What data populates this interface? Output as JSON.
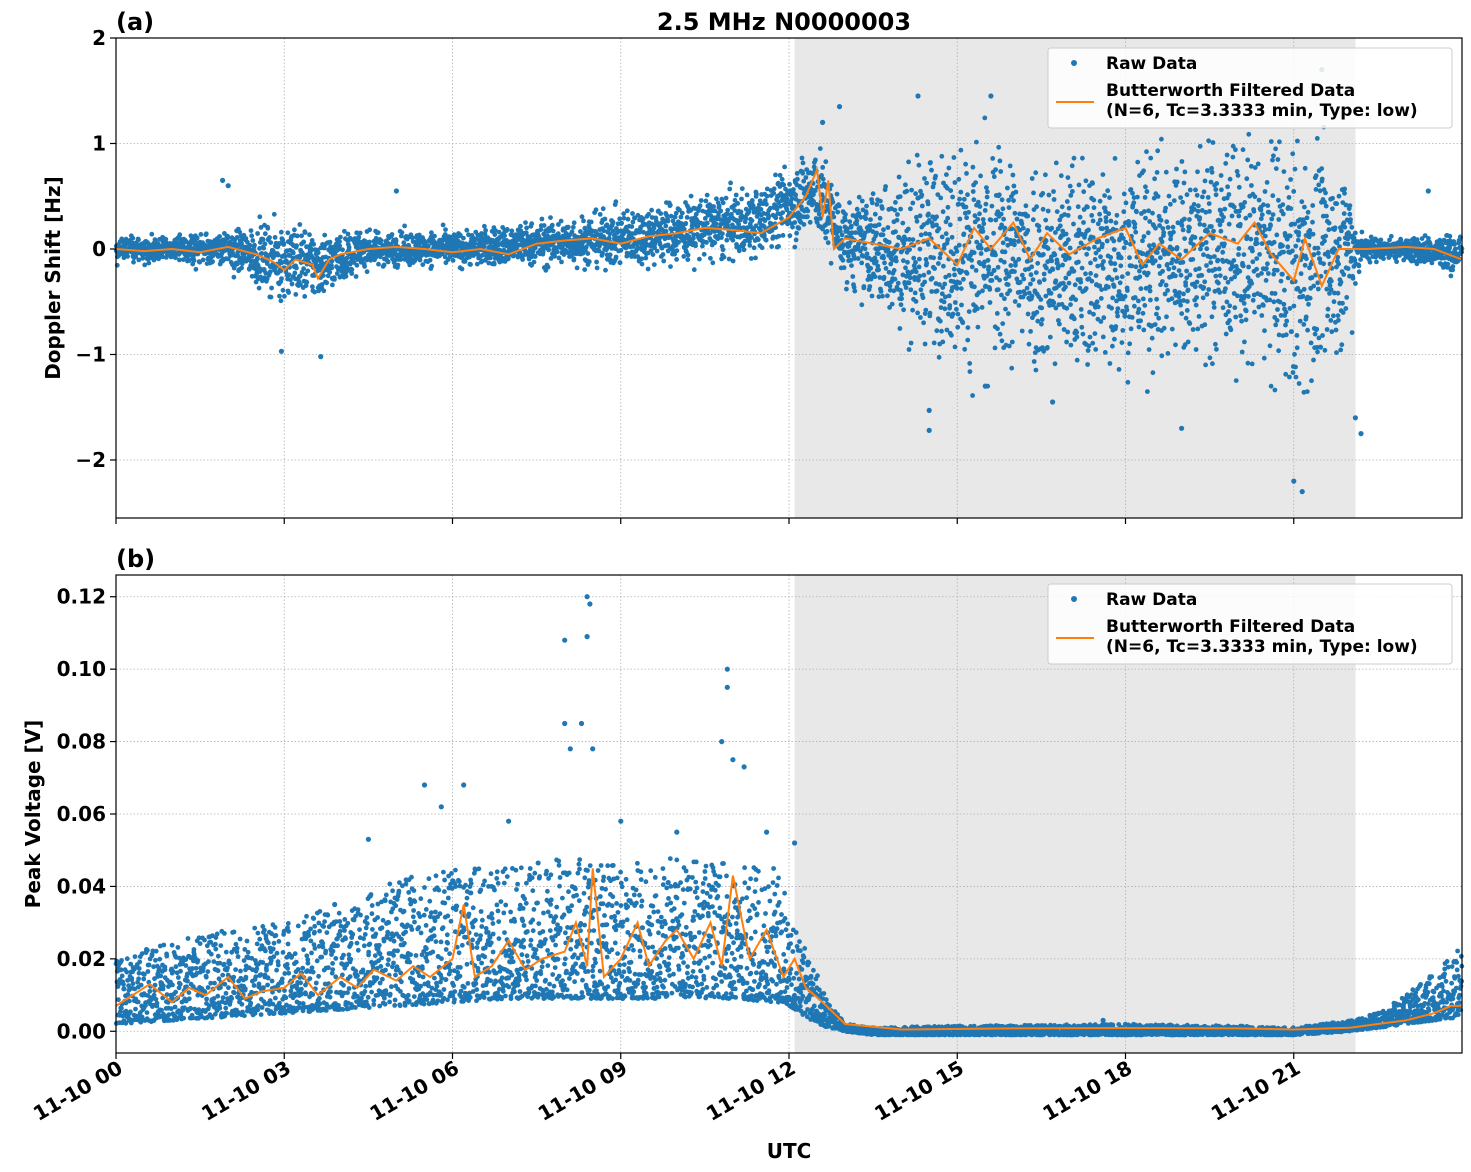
{
  "figure": {
    "title": "2.5 MHz N0000003",
    "xlabel": "UTC",
    "x_tick_labels": [
      "11-10 00",
      "11-10 03",
      "11-10 06",
      "11-10 09",
      "11-10 12",
      "11-10 15",
      "11-10 18",
      "11-10 21"
    ]
  },
  "colors": {
    "raw": "#1f77b4",
    "filtered": "#ff7f0e",
    "shade": "#e8e8e8",
    "grid": "#b0b0b0"
  },
  "chart_data": [
    {
      "panel": "(a)",
      "type": "scatter",
      "ylabel": "Doppler Shift [Hz]",
      "xlim_hours": [
        0,
        24
      ],
      "ylim": [
        -2.55,
        2.0
      ],
      "y_ticks": [
        2,
        1,
        0,
        -1,
        -2
      ],
      "y_tick_labels": [
        "2",
        "1",
        "0",
        "−1",
        "−2"
      ],
      "grid": true,
      "legend_placement": "top-right",
      "shaded_hours": [
        12.1,
        22.1
      ],
      "series": [
        {
          "name": "Raw Data",
          "style": "points",
          "envelope": {
            "hours": [
              0,
              1,
              2,
              2.8,
              3,
              3.6,
              4.5,
              6,
              7.5,
              9,
              10.5,
              11.5,
              12,
              12.5,
              13,
              14,
              15,
              16,
              17,
              18,
              19,
              20,
              21,
              21.5,
              22,
              22.2,
              23,
              24
            ],
            "center": [
              0,
              0,
              0,
              -0.1,
              -0.1,
              -0.15,
              0,
              0,
              0.05,
              0.1,
              0.2,
              0.25,
              0.45,
              0.55,
              0.05,
              0,
              0,
              -0.1,
              -0.15,
              -0.1,
              -0.05,
              0,
              -0.2,
              -0.15,
              0,
              0,
              0,
              -0.05
            ],
            "spread": [
              0.12,
              0.12,
              0.15,
              0.3,
              0.35,
              0.3,
              0.15,
              0.15,
              0.2,
              0.25,
              0.3,
              0.3,
              0.35,
              0.4,
              0.35,
              0.7,
              0.95,
              0.95,
              0.95,
              0.95,
              0.95,
              0.95,
              1.1,
              1.0,
              0.7,
              0.12,
              0.1,
              0.2
            ]
          },
          "outliers": [
            [
              1.9,
              0.65
            ],
            [
              2.0,
              0.6
            ],
            [
              2.95,
              -0.97
            ],
            [
              3.65,
              -1.02
            ],
            [
              5.0,
              0.55
            ],
            [
              11.8,
              0.5
            ],
            [
              12.6,
              1.2
            ],
            [
              12.9,
              1.35
            ],
            [
              14.3,
              1.45
            ],
            [
              14.5,
              -1.72
            ],
            [
              14.5,
              -1.53
            ],
            [
              15.6,
              1.45
            ],
            [
              15.5,
              -1.3
            ],
            [
              16.7,
              -1.45
            ],
            [
              19.0,
              -1.7
            ],
            [
              21.0,
              -2.2
            ],
            [
              21.15,
              -2.3
            ],
            [
              21.5,
              1.7
            ],
            [
              22.1,
              -1.6
            ],
            [
              22.2,
              -1.75
            ],
            [
              23.4,
              0.55
            ]
          ]
        },
        {
          "name": "Butterworth Filtered Data\n(N=6, Tc=3.3333 min, Type: low)",
          "style": "line",
          "hours": [
            0,
            0.5,
            1,
            1.5,
            2,
            2.5,
            2.8,
            3.0,
            3.2,
            3.5,
            3.6,
            3.8,
            4,
            4.5,
            5,
            5.5,
            6,
            6.5,
            7,
            7.5,
            8,
            8.5,
            9,
            9.5,
            10,
            10.5,
            11,
            11.5,
            12,
            12.3,
            12.5,
            12.6,
            12.7,
            12.8,
            13,
            13.5,
            14,
            14.5,
            15,
            15.3,
            15.6,
            16,
            16.3,
            16.6,
            17,
            17.5,
            18,
            18.3,
            18.6,
            19,
            19.5,
            20,
            20.3,
            20.6,
            21,
            21.2,
            21.5,
            21.8,
            22,
            22.3,
            23,
            23.5,
            24
          ],
          "values": [
            0,
            -0.02,
            0,
            -0.03,
            0.02,
            -0.05,
            -0.12,
            -0.2,
            -0.1,
            -0.15,
            -0.28,
            -0.1,
            -0.05,
            0,
            0.02,
            0,
            -0.03,
            0,
            -0.05,
            0.05,
            0.08,
            0.1,
            0.05,
            0.12,
            0.15,
            0.2,
            0.18,
            0.15,
            0.3,
            0.5,
            0.75,
            0.3,
            0.65,
            0.0,
            0.1,
            0.05,
            0.0,
            0.1,
            -0.15,
            0.2,
            0.0,
            0.25,
            -0.1,
            0.15,
            -0.05,
            0.1,
            0.2,
            -0.15,
            0.05,
            -0.1,
            0.15,
            0.05,
            0.25,
            -0.05,
            -0.3,
            0.1,
            -0.35,
            0.0,
            0.0,
            0.0,
            0.02,
            0.0,
            -0.1
          ]
        }
      ]
    },
    {
      "panel": "(b)",
      "type": "scatter",
      "ylabel": "Peak Voltage [V]",
      "xlim_hours": [
        0,
        24
      ],
      "ylim": [
        -0.006,
        0.126
      ],
      "y_ticks": [
        0.12,
        0.1,
        0.08,
        0.06,
        0.04,
        0.02,
        0.0
      ],
      "y_tick_labels": [
        "0.12",
        "0.10",
        "0.08",
        "0.06",
        "0.04",
        "0.02",
        "0.00"
      ],
      "grid": true,
      "legend_placement": "top-right",
      "shaded_hours": [
        12.1,
        22.1
      ],
      "series": [
        {
          "name": "Raw Data",
          "style": "points",
          "envelope": {
            "hours": [
              0,
              1,
              2,
              3,
              4,
              5,
              6,
              7,
              8,
              9,
              10,
              11,
              11.8,
              12.1,
              12.4,
              12.7,
              13,
              13.5,
              15,
              18,
              20,
              21,
              22,
              22.5,
              23,
              23.5,
              24
            ],
            "low": [
              0.002,
              0.003,
              0.004,
              0.005,
              0.006,
              0.007,
              0.008,
              0.009,
              0.009,
              0.009,
              0.009,
              0.009,
              0.008,
              0.006,
              0.003,
              0.001,
              0.0,
              -0.001,
              -0.001,
              -0.001,
              -0.001,
              -0.001,
              0.0,
              0.001,
              0.002,
              0.003,
              0.004
            ],
            "high": [
              0.02,
              0.025,
              0.028,
              0.03,
              0.035,
              0.042,
              0.045,
              0.045,
              0.048,
              0.046,
              0.048,
              0.046,
              0.045,
              0.03,
              0.02,
              0.008,
              0.002,
              0.001,
              0.0015,
              0.002,
              0.0015,
              0.001,
              0.003,
              0.005,
              0.01,
              0.016,
              0.024
            ]
          },
          "outliers": [
            [
              3.9,
              0.035
            ],
            [
              4.5,
              0.053
            ],
            [
              5.5,
              0.068
            ],
            [
              5.8,
              0.062
            ],
            [
              6.2,
              0.068
            ],
            [
              7.0,
              0.058
            ],
            [
              8.0,
              0.108
            ],
            [
              8.0,
              0.085
            ],
            [
              8.1,
              0.078
            ],
            [
              8.3,
              0.085
            ],
            [
              8.4,
              0.12
            ],
            [
              8.45,
              0.118
            ],
            [
              8.4,
              0.109
            ],
            [
              8.5,
              0.078
            ],
            [
              9.0,
              0.058
            ],
            [
              10.0,
              0.055
            ],
            [
              10.8,
              0.08
            ],
            [
              10.9,
              0.1
            ],
            [
              10.9,
              0.095
            ],
            [
              11.0,
              0.075
            ],
            [
              11.2,
              0.073
            ],
            [
              11.6,
              0.055
            ],
            [
              12.1,
              0.052
            ],
            [
              17.6,
              0.003
            ]
          ]
        },
        {
          "name": "Butterworth Filtered Data\n(N=6, Tc=3.3333 min, Type: low)",
          "style": "line",
          "hours": [
            0,
            0.3,
            0.6,
            1,
            1.3,
            1.6,
            2,
            2.3,
            2.6,
            3,
            3.3,
            3.6,
            4,
            4.3,
            4.6,
            5,
            5.3,
            5.6,
            6,
            6.2,
            6.4,
            6.7,
            7,
            7.3,
            7.6,
            8,
            8.2,
            8.4,
            8.5,
            8.7,
            9,
            9.3,
            9.5,
            9.8,
            10,
            10.3,
            10.6,
            10.8,
            11,
            11.3,
            11.6,
            11.9,
            12.1,
            12.3,
            12.6,
            13,
            14,
            16,
            18,
            20,
            21,
            22,
            22.5,
            23,
            23.5,
            23.8,
            24
          ],
          "values": [
            0.007,
            0.01,
            0.013,
            0.008,
            0.012,
            0.01,
            0.015,
            0.009,
            0.011,
            0.012,
            0.016,
            0.01,
            0.015,
            0.012,
            0.017,
            0.014,
            0.018,
            0.015,
            0.02,
            0.035,
            0.015,
            0.018,
            0.025,
            0.017,
            0.02,
            0.022,
            0.03,
            0.018,
            0.045,
            0.015,
            0.02,
            0.03,
            0.018,
            0.025,
            0.028,
            0.02,
            0.03,
            0.018,
            0.043,
            0.02,
            0.028,
            0.015,
            0.02,
            0.012,
            0.008,
            0.002,
            0.0005,
            0.0008,
            0.0009,
            0.0008,
            0.0005,
            0.001,
            0.002,
            0.003,
            0.005,
            0.007,
            0.007
          ]
        }
      ]
    }
  ]
}
